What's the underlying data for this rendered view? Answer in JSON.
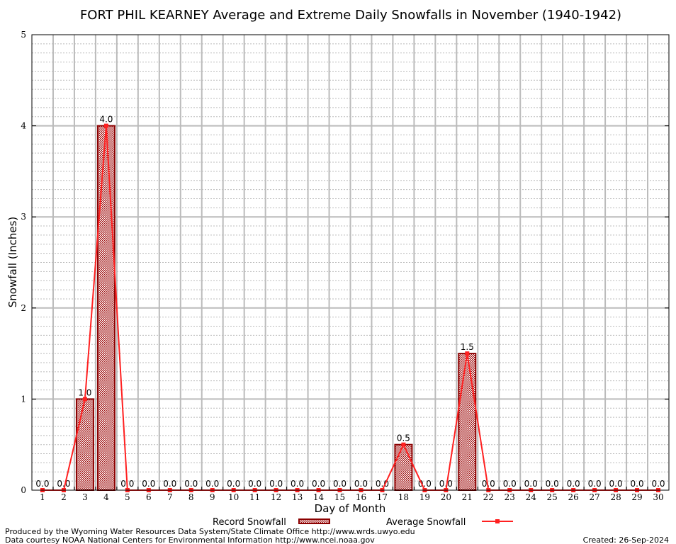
{
  "chart_data": {
    "type": "bar",
    "title": "FORT PHIL KEARNEY Average and Extreme Daily Snowfalls in November (1940-1942)",
    "xlabel": "Day of Month",
    "ylabel": "Snowfall (Inches)",
    "ylim": [
      0,
      5
    ],
    "yticks": [
      "0",
      "1",
      "2",
      "3",
      "4",
      "5"
    ],
    "categories": [
      1,
      2,
      3,
      4,
      5,
      6,
      7,
      8,
      9,
      10,
      11,
      12,
      13,
      14,
      15,
      16,
      17,
      18,
      19,
      20,
      21,
      22,
      23,
      24,
      25,
      26,
      27,
      28,
      29,
      30
    ],
    "series": [
      {
        "name": "Record Snowfall",
        "type": "bar",
        "color": "#8b0000",
        "values": [
          0,
          0,
          1.0,
          4.0,
          0,
          0,
          0,
          0,
          0,
          0,
          0,
          0,
          0,
          0,
          0,
          0,
          0,
          0.5,
          0,
          0,
          1.5,
          0,
          0,
          0,
          0,
          0,
          0,
          0,
          0,
          0
        ]
      },
      {
        "name": "Average Snowfall",
        "type": "line",
        "color": "#ff2020",
        "values": [
          0,
          0,
          1.0,
          4.0,
          0,
          0,
          0,
          0,
          0,
          0,
          0,
          0,
          0,
          0,
          0,
          0,
          0,
          0.5,
          0,
          0,
          1.5,
          0,
          0,
          0,
          0,
          0,
          0,
          0,
          0,
          0
        ]
      }
    ],
    "grid": true,
    "legend": "bottom"
  },
  "footer": {
    "line1": "Produced by the Wyoming Water Resources Data System/State Climate Office http://www.wrds.uwyo.edu",
    "line2": "Data courtesy NOAA National Centers for Environmental Information http://www.ncei.noaa.gov",
    "created": "Created:  26-Sep-2024"
  }
}
